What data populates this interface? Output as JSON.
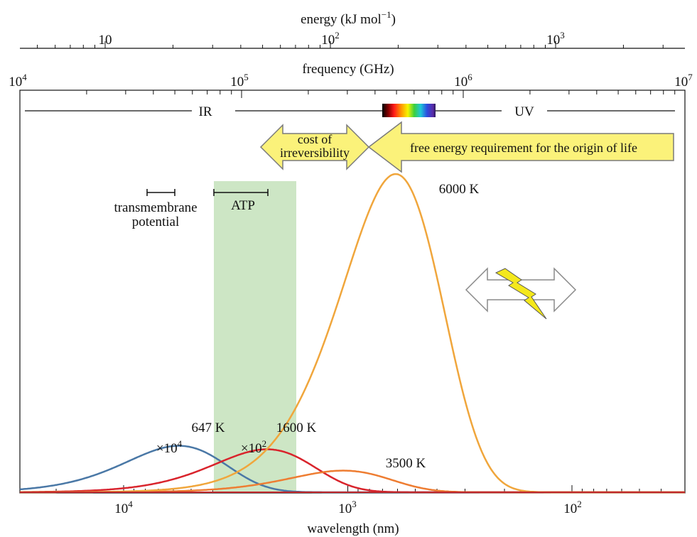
{
  "chart_data": {
    "type": "line",
    "top_axis_1": {
      "label_main": "energy (kJ mol",
      "label_sup": "−1",
      "label_end": ")",
      "ticks": [
        {
          "base": "10",
          "exp": ""
        },
        {
          "base": "10",
          "exp": "2"
        },
        {
          "base": "10",
          "exp": "3"
        }
      ]
    },
    "top_axis_2": {
      "label": "frequency (GHz)",
      "ticks": [
        {
          "base": "10",
          "exp": "4"
        },
        {
          "base": "10",
          "exp": "5"
        },
        {
          "base": "10",
          "exp": "6"
        },
        {
          "base": "10",
          "exp": "7"
        }
      ]
    },
    "xaxis": {
      "label": "wavelength (nm)",
      "ticks": [
        {
          "base": "10",
          "exp": "4"
        },
        {
          "base": "10",
          "exp": "3"
        },
        {
          "base": "10",
          "exp": "2"
        }
      ],
      "range_nm": [
        30000,
        31
      ]
    },
    "bands": {
      "ir": "IR",
      "uv": "UV"
    },
    "arrows": {
      "cost_line1": "cost of",
      "cost_line2": "irreversibility",
      "free_energy": "free energy requirement for the origin of life"
    },
    "ranges": {
      "transmembrane_line1": "transmembrane",
      "transmembrane_line2": "potential",
      "atp": "ATP"
    },
    "series": [
      {
        "name": "647 K",
        "temperature": 647,
        "scale_label": "×10",
        "scale_exp": "4",
        "color": "#4a78a6",
        "peak_relative": 0.146
      },
      {
        "name": "1600 K",
        "temperature": 1600,
        "scale_label": "×10",
        "scale_exp": "2",
        "color": "#d9242c",
        "peak_relative": 0.135
      },
      {
        "name": "3500 K",
        "temperature": 3500,
        "scale_label": "",
        "scale_exp": "",
        "color": "#ee7d32",
        "peak_relative": 0.068
      },
      {
        "name": "6000 K",
        "temperature": 6000,
        "scale_label": "",
        "scale_exp": "",
        "color": "#f0a63c",
        "peak_relative": 1.0
      }
    ],
    "grid": false,
    "colors": {
      "atp_band": "#cde6c5",
      "arrow_fill": "#fbf27a",
      "arrow_stroke": "#7a7a7a",
      "bolt": "#f4e81c"
    }
  }
}
